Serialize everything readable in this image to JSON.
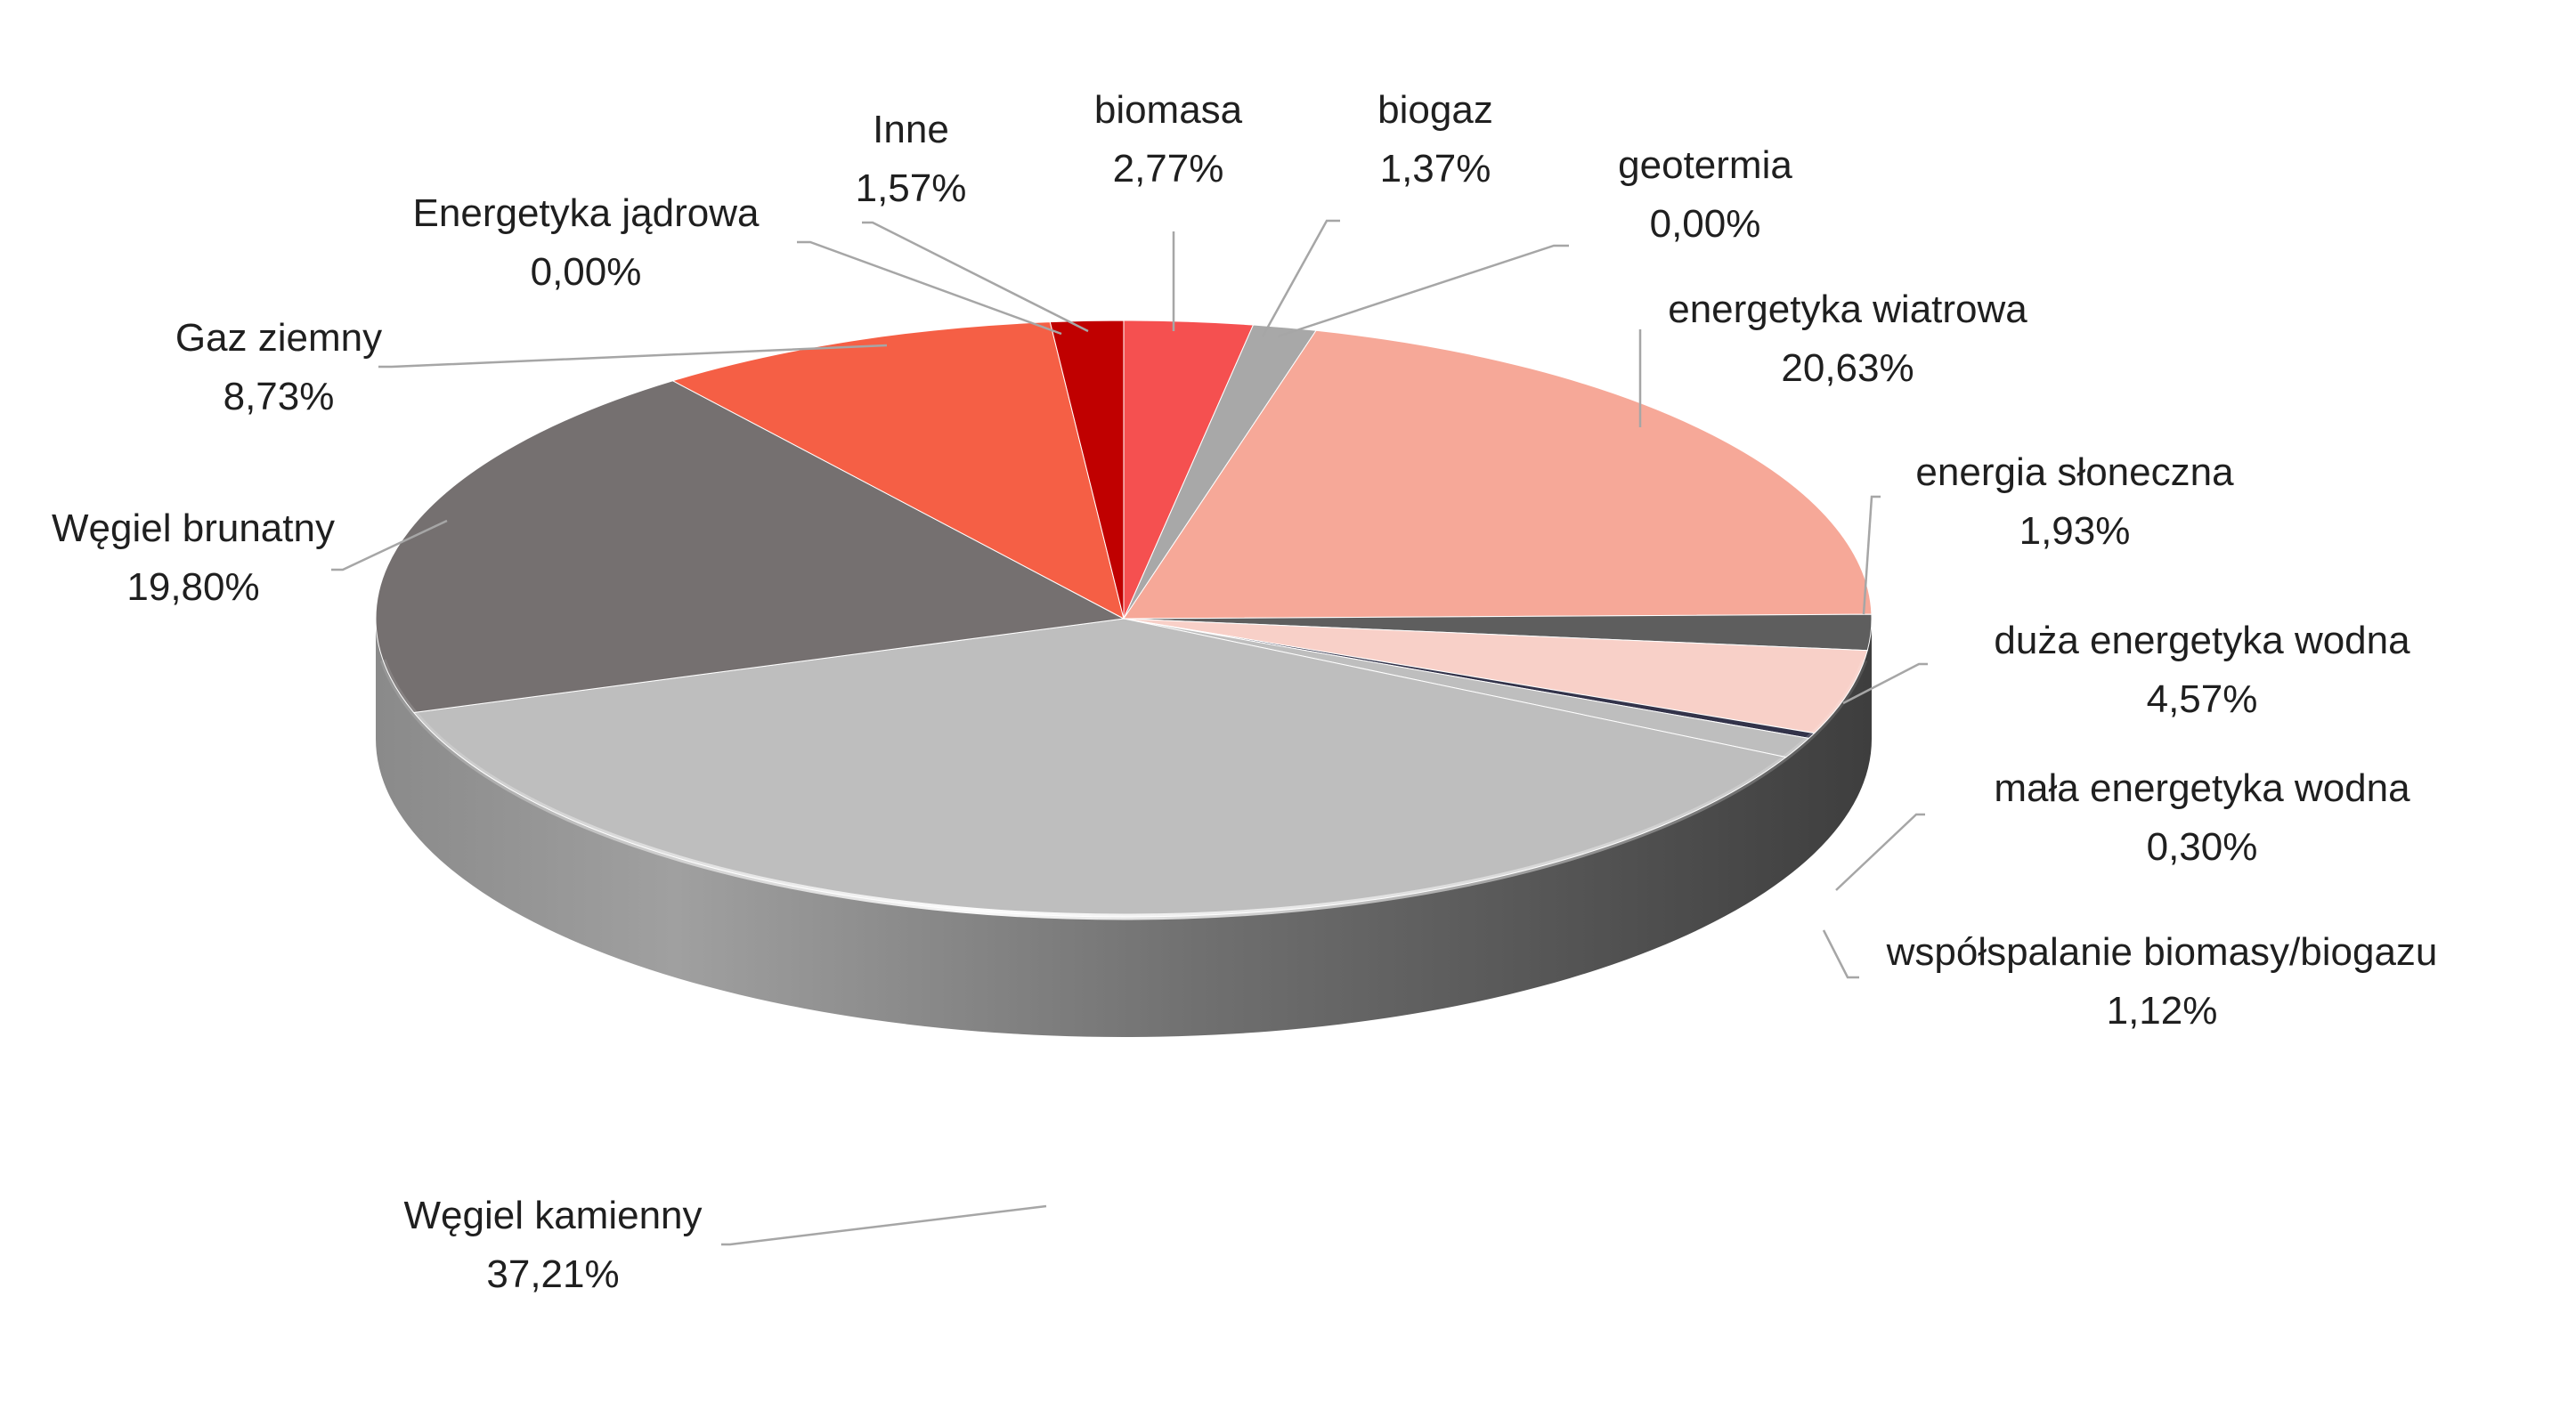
{
  "chart_data": {
    "type": "pie",
    "title": "",
    "legend": "none",
    "style": "3d",
    "unit": "%",
    "slices": [
      {
        "name": "biomasa",
        "value": 2.77,
        "label": "2,77%",
        "color": "#f55050"
      },
      {
        "name": "biogaz",
        "value": 1.37,
        "label": "1,37%",
        "color": "#a8a8a8"
      },
      {
        "name": "geotermia",
        "value": 0.0,
        "label": "0,00%",
        "color": "#c8c8c8"
      },
      {
        "name": "energetyka wiatrowa",
        "value": 20.63,
        "label": "20,63%",
        "color": "#f6a898"
      },
      {
        "name": "energia słoneczna",
        "value": 1.93,
        "label": "1,93%",
        "color": "#5e5e5e"
      },
      {
        "name": "duża energetyka wodna",
        "value": 4.57,
        "label": "4,57%",
        "color": "#f8d0c8"
      },
      {
        "name": "mała energetyka wodna",
        "value": 0.3,
        "label": "0,30%",
        "color": "#33334a"
      },
      {
        "name": "współspalanie biomasy/biogazu",
        "value": 1.12,
        "label": "1,12%",
        "color": "#bebebe"
      },
      {
        "name": "Węgiel kamienny",
        "value": 37.21,
        "label": "37,21%",
        "color": "#bebebe"
      },
      {
        "name": "Węgiel brunatny",
        "value": 19.8,
        "label": "19,80%",
        "color": "#757070"
      },
      {
        "name": "Gaz ziemny",
        "value": 8.73,
        "label": "8,73%",
        "color": "#f55f45"
      },
      {
        "name": "Energetyka jądrowa",
        "value": 0.0,
        "label": "0,00%",
        "color": "#d04030"
      },
      {
        "name": "Inne",
        "value": 1.57,
        "label": "1,57%",
        "color": "#c00000"
      }
    ]
  }
}
